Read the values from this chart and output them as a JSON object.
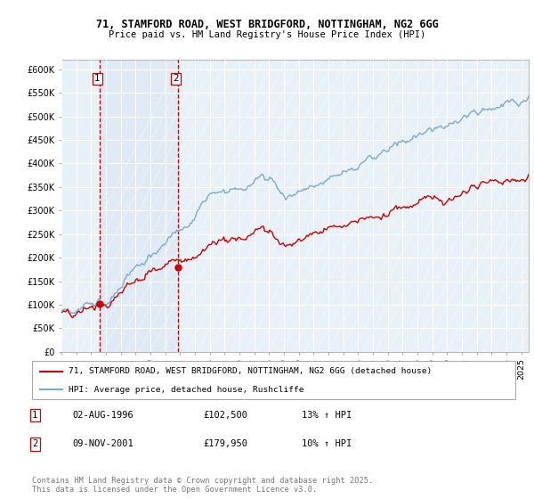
{
  "title1": "71, STAMFORD ROAD, WEST BRIDGFORD, NOTTINGHAM, NG2 6GG",
  "title2": "Price paid vs. HM Land Registry's House Price Index (HPI)",
  "legend_line1": "71, STAMFORD ROAD, WEST BRIDGFORD, NOTTINGHAM, NG2 6GG (detached house)",
  "legend_line2": "HPI: Average price, detached house, Rushcliffe",
  "sale1_label": "1",
  "sale1_date": "02-AUG-1996",
  "sale1_price": "£102,500",
  "sale1_hpi": "13% ↑ HPI",
  "sale2_label": "2",
  "sale2_date": "09-NOV-2001",
  "sale2_price": "£179,950",
  "sale2_hpi": "10% ↑ HPI",
  "footer": "Contains HM Land Registry data © Crown copyright and database right 2025.\nThis data is licensed under the Open Government Licence v3.0.",
  "red_color": "#cc0000",
  "blue_color": "#7aabcf",
  "shade_color": "#dce8f3",
  "bg_color": "#e8f0f8",
  "ylim_max": 620000,
  "sale1_year": 1996.58,
  "sale1_value": 102500,
  "sale2_year": 2001.86,
  "sale2_value": 179950,
  "xstart": 1994.0,
  "xend": 2025.5
}
